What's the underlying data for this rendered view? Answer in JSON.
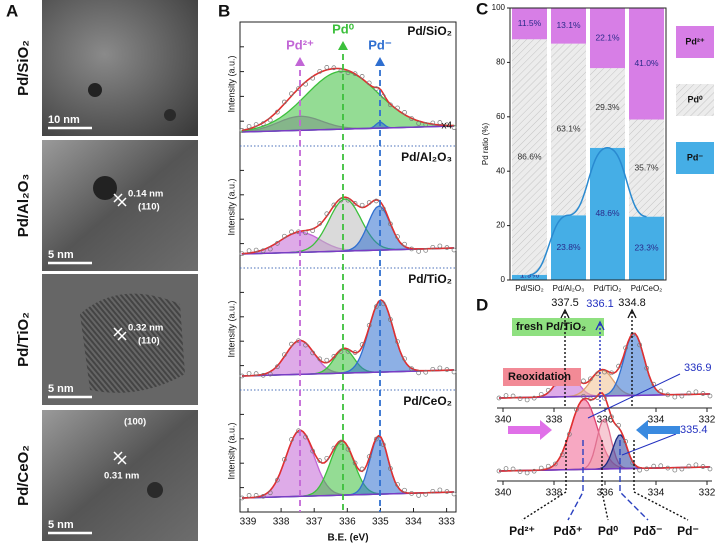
{
  "panel_a": {
    "label": "A",
    "images": [
      {
        "name": "Pd/SiO₂",
        "scale": "10 nm"
      },
      {
        "name": "Pd/Al₂O₃",
        "scale": "5 nm",
        "spacing": "0.14 nm",
        "plane": "(110)"
      },
      {
        "name": "Pd/TiO₂",
        "scale": "5 nm",
        "spacing": "0.32 nm",
        "plane": "(110)"
      },
      {
        "name": "Pd/CeO₂",
        "scale": "5 nm",
        "spacing": "0.31 nm",
        "plane": "(100)"
      }
    ]
  },
  "panel_b": {
    "label": "B",
    "x_label": "B.E. (eV)",
    "y_label": "Intensity (a.u.)",
    "x_ticks": [
      "339",
      "338",
      "337",
      "336",
      "335",
      "334",
      "333"
    ],
    "peaks": [
      "Pd²⁺",
      "Pd⁰",
      "Pd⁻"
    ],
    "samples": [
      "Pd/SiO₂",
      "Pd/Al₂O₃",
      "Pd/TiO₂",
      "Pd/CeO₂"
    ],
    "note": "x4"
  },
  "chart_data": {
    "type": "stacked_bar",
    "label": "C",
    "y_label": "Pd ratio (%)",
    "categories": [
      "Pd/SiO₂",
      "Pd/Al₂O₃",
      "Pd/TiO₂",
      "Pd/CeO₂"
    ],
    "ylim": [
      0,
      100
    ],
    "yticks": [
      0,
      20,
      40,
      60,
      80,
      100
    ],
    "series": [
      {
        "name": "Pd²⁺",
        "color": "#d77ee6",
        "values": [
          11.5,
          13.1,
          22.1,
          41.0
        ],
        "value_labels": [
          "11.5%",
          "13.1%",
          "22.1%",
          "41.0%"
        ]
      },
      {
        "name": "Pd⁰",
        "color": "#ececec",
        "values": [
          86.6,
          63.1,
          29.3,
          35.7
        ],
        "value_labels": [
          "86.6%",
          "63.1%",
          "29.3%",
          "35.7%"
        ]
      },
      {
        "name": "Pd⁻",
        "color": "#45aee6",
        "values": [
          1.9,
          23.8,
          48.6,
          23.3
        ],
        "value_labels": [
          "1.9%",
          "23.8%",
          "48.6%",
          "23.3%"
        ]
      }
    ]
  },
  "panel_d": {
    "label": "D",
    "fresh": "fresh Pd/TiO₂",
    "reox": "Reoxidation",
    "fresh_peaks": [
      "337.5",
      "336.1",
      "334.8"
    ],
    "reox_peaks": [
      "336.9",
      "335.4"
    ],
    "x_ticks": [
      "340",
      "338",
      "336",
      "334",
      "332"
    ],
    "states": [
      "Pd²⁺",
      "Pdδ⁺",
      "Pd⁰",
      "Pdδ⁻",
      "Pd⁻"
    ]
  }
}
